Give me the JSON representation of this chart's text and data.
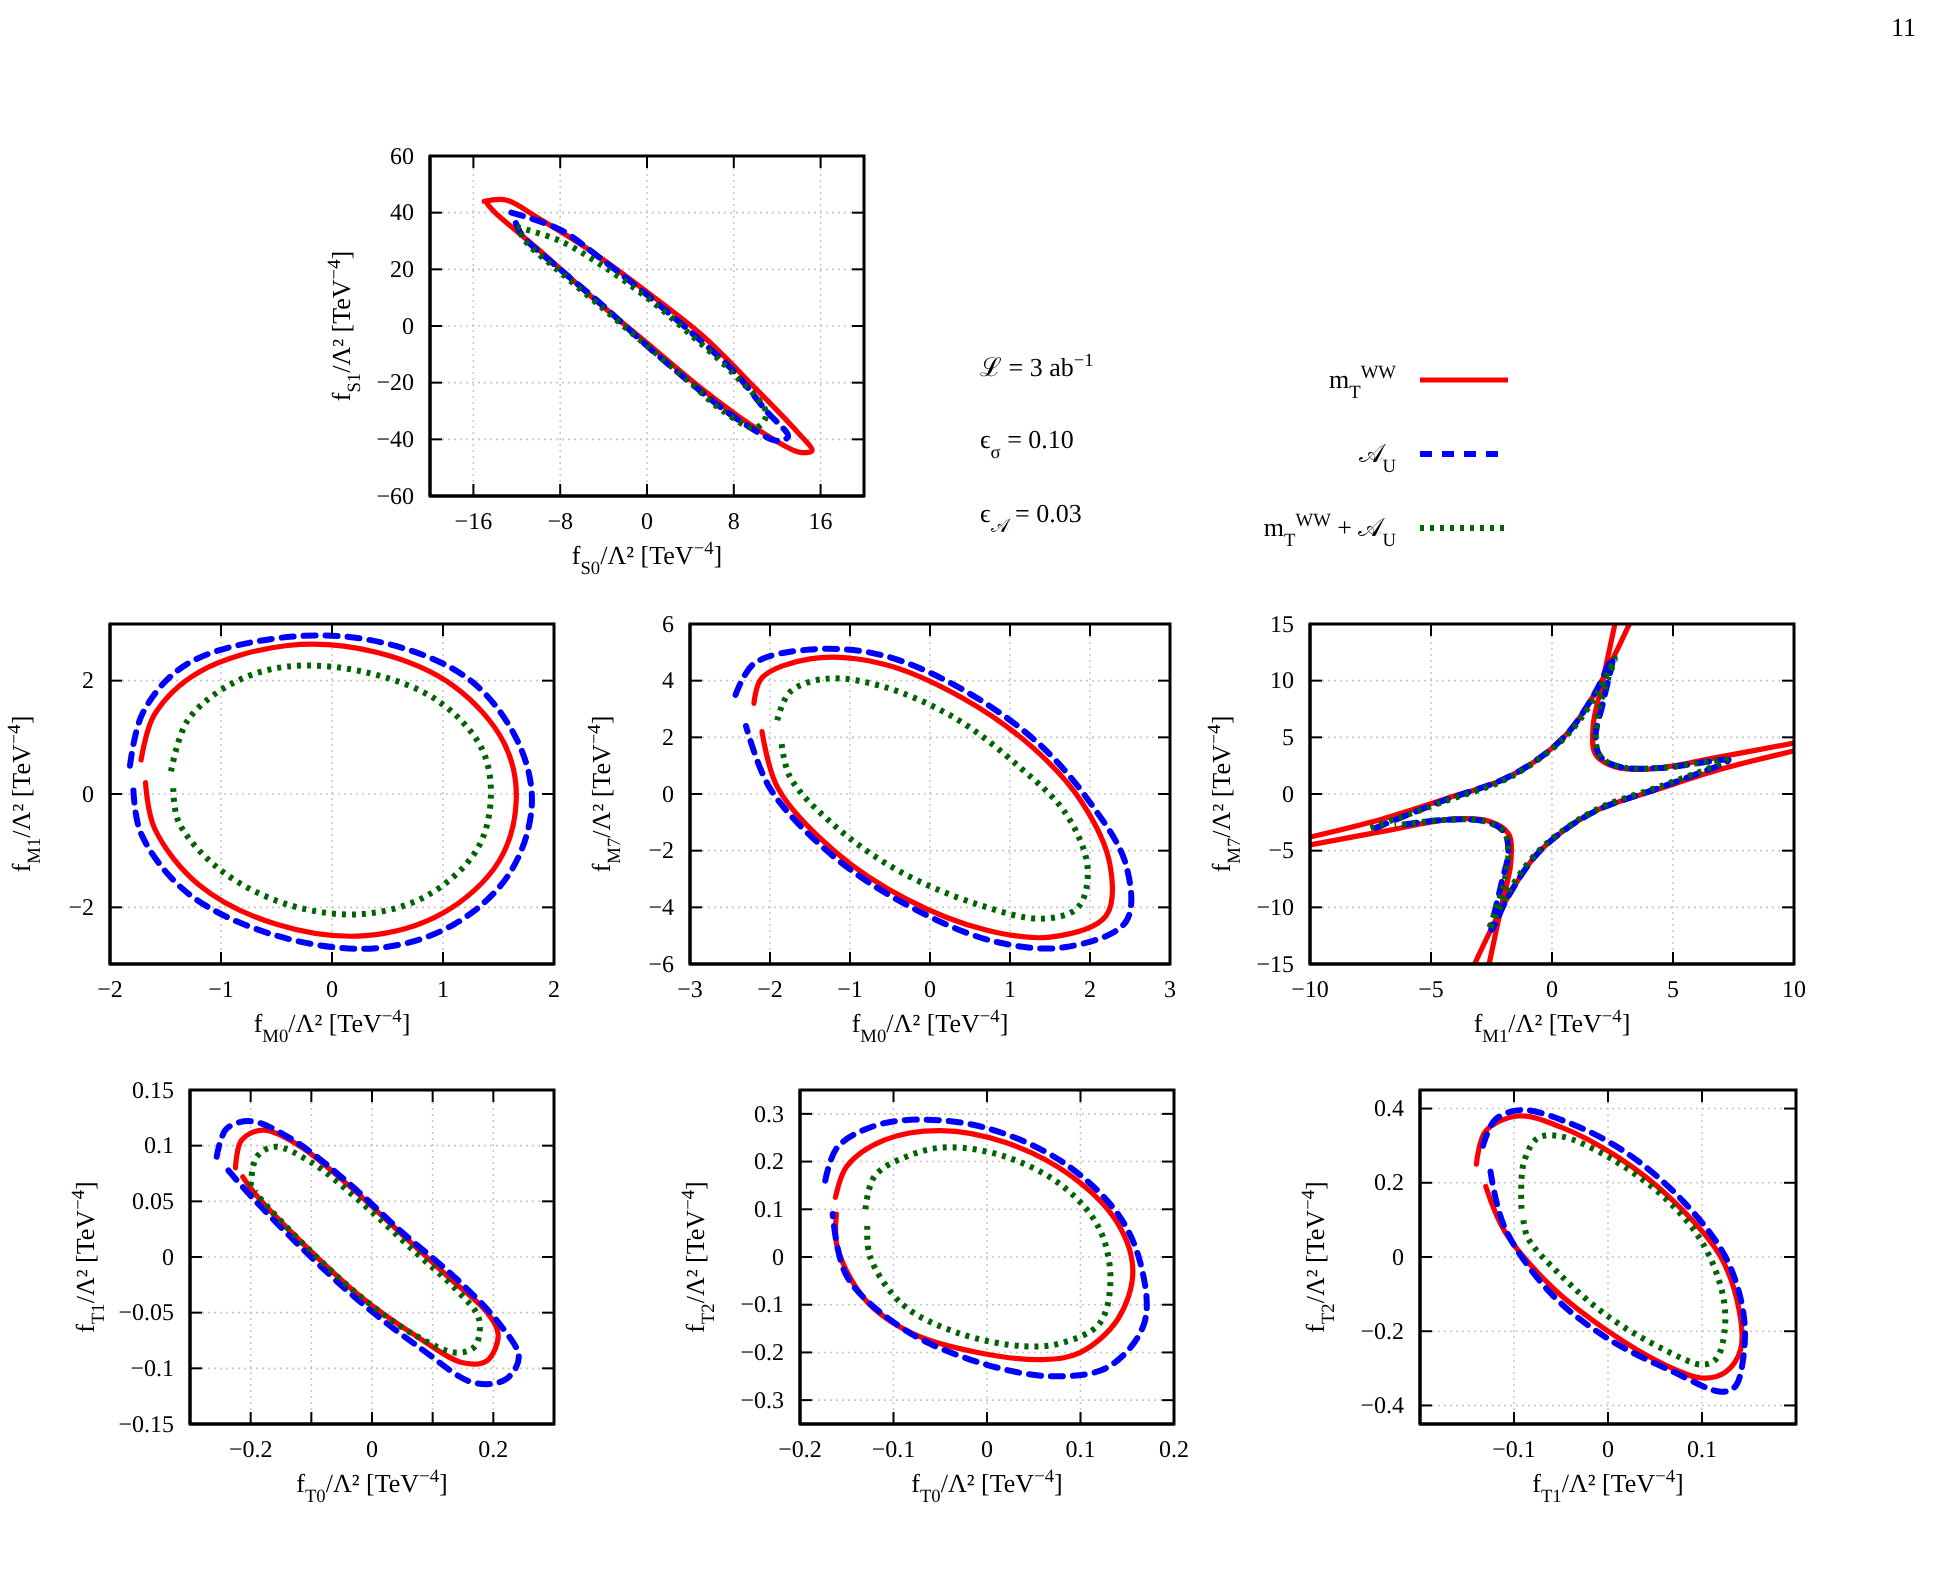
{
  "chart_data": [
    {
      "type": "line",
      "xlabel": "f$_{S0}$/Λ² [TeV$^{−4}$]",
      "ylabel": "f$_{S1}$/Λ² [TeV$^{−4}$]",
      "xlim": [
        -20,
        20
      ],
      "xticks": [
        -16,
        -8,
        0,
        8,
        16
      ],
      "ylim": [
        -60,
        60
      ],
      "yticks": [
        -60,
        -40,
        -20,
        0,
        20,
        40,
        60
      ],
      "grid": true,
      "legend": "right",
      "annotations": [
        "ℒ = 3 ab$^{−1}$",
        "ϵ$_{σ}$ = 0.10",
        "ϵ$_{𝒜}$ = 0.03",
        "11"
      ],
      "series": [
        {
          "name": "m$_{T}$$^{WW}$",
          "color": "#ff0000",
          "line_style": "solid",
          "x": [
            -15,
            -13,
            -10,
            -5,
            0,
            5,
            10,
            14,
            15.2,
            14,
            10,
            5,
            0,
            -5,
            -10,
            -14,
            -14.7
          ],
          "values": [
            44,
            44.5,
            38,
            26,
            12,
            -3,
            -22,
            -38,
            -44,
            -44.5,
            -36,
            -22,
            -6,
            10,
            27,
            40,
            43
          ]
        },
        {
          "name": "𝒜$_{U}$",
          "color": "#0000ff",
          "line_style": "dashed",
          "x": [
            -12.5,
            -8,
            -4,
            0,
            4,
            8,
            11,
            13,
            12,
            8,
            4,
            0,
            -4,
            -8,
            -11.5,
            -12.2
          ],
          "values": [
            40,
            34,
            23,
            11,
            -2,
            -16,
            -30,
            -39,
            -40.5,
            -32,
            -20,
            -7,
            7,
            20,
            32,
            37.5
          ]
        },
        {
          "name": "m$_{T}$$^{WW}$ + 𝒜$_{U}$",
          "color": "#006400",
          "line_style": "dotted",
          "x": [
            -12,
            -8,
            -4,
            0,
            4,
            8,
            11,
            10,
            7,
            4,
            0,
            -4,
            -8,
            -11,
            -11.7
          ],
          "values": [
            35,
            30,
            21,
            10,
            -3,
            -17,
            -31,
            -36,
            -30,
            -20,
            -7,
            6,
            19,
            29,
            33
          ]
        }
      ]
    },
    {
      "type": "line",
      "xlabel": "f$_{M0}$/Λ² [TeV$^{−4}$]",
      "ylabel": "f$_{M1}$/Λ² [TeV$^{−4}$]",
      "xlim": [
        -2,
        2
      ],
      "xticks": [
        -2,
        -1,
        0,
        1,
        2
      ],
      "ylim": [
        -3,
        3
      ],
      "yticks": [
        -2,
        0,
        2
      ],
      "grid": true,
      "series": [
        {
          "color": "#ff0000",
          "line_style": "solid",
          "x": [
            -1.72,
            -1.6,
            -1.2,
            -0.4,
            0.4,
            1.1,
            1.55,
            1.66,
            1.5,
            1.0,
            0.3,
            -0.5,
            -1.2,
            -1.6,
            -1.68
          ],
          "values": [
            0.6,
            1.4,
            2.15,
            2.62,
            2.5,
            1.9,
            0.9,
            -0.1,
            -1.2,
            -2.1,
            -2.5,
            -2.3,
            -1.6,
            -0.6,
            0.2
          ]
        },
        {
          "color": "#0000ff",
          "line_style": "dashed",
          "x": [
            -1.82,
            -1.7,
            -1.3,
            -0.35,
            0.5,
            1.25,
            1.68,
            1.8,
            1.6,
            1.1,
            0.4,
            -0.5,
            -1.3,
            -1.72,
            -1.79
          ],
          "values": [
            0.5,
            1.45,
            2.3,
            2.78,
            2.65,
            2.0,
            0.9,
            -0.2,
            -1.4,
            -2.3,
            -2.72,
            -2.5,
            -1.75,
            -0.7,
            0.1
          ]
        },
        {
          "color": "#006400",
          "line_style": "dotted",
          "x": [
            -1.45,
            -1.3,
            -0.9,
            -0.4,
            0.3,
            0.95,
            1.35,
            1.43,
            1.3,
            0.85,
            0.26,
            -0.4,
            -1.0,
            -1.38,
            -1.43
          ],
          "values": [
            0.4,
            1.3,
            1.95,
            2.25,
            2.15,
            1.65,
            0.8,
            -0.1,
            -1.0,
            -1.8,
            -2.12,
            -1.95,
            -1.35,
            -0.5,
            0.1
          ]
        }
      ]
    },
    {
      "type": "line",
      "xlabel": "f$_{M0}$/Λ² [TeV$^{−4}$]",
      "ylabel": "f$_{M7}$/Λ² [TeV$^{−4}$]",
      "xlim": [
        -3,
        3
      ],
      "xticks": [
        -3,
        -2,
        -1,
        0,
        1,
        2,
        3
      ],
      "ylim": [
        -6,
        6
      ],
      "yticks": [
        -6,
        -4,
        -2,
        0,
        2,
        4,
        6
      ],
      "grid": true,
      "series": [
        {
          "color": "#ff0000",
          "line_style": "solid",
          "x": [
            -2.2,
            -2.1,
            -1.5,
            -0.6,
            0.4,
            1.3,
            1.9,
            2.25,
            2.2,
            1.5,
            0.7,
            -0.3,
            -1.2,
            -1.9,
            -2.1
          ],
          "values": [
            3.2,
            4.1,
            4.77,
            4.6,
            3.4,
            1.6,
            -0.3,
            -2.5,
            -4.3,
            -5.05,
            -4.8,
            -3.7,
            -2.0,
            0.2,
            2.2
          ]
        },
        {
          "color": "#0000ff",
          "line_style": "dashed",
          "x": [
            -2.43,
            -2.2,
            -1.5,
            -0.6,
            0.4,
            1.35,
            2.0,
            2.45,
            2.45,
            1.7,
            0.8,
            -0.3,
            -1.25,
            -2.0,
            -2.3
          ],
          "values": [
            3.5,
            4.6,
            5.1,
            4.9,
            3.7,
            1.8,
            -0.3,
            -2.5,
            -4.5,
            -5.4,
            -5.2,
            -3.9,
            -2.1,
            0.2,
            2.4
          ]
        },
        {
          "color": "#006400",
          "line_style": "dotted",
          "x": [
            -1.91,
            -1.75,
            -1.3,
            -0.6,
            0.3,
            1.1,
            1.7,
            1.97,
            1.85,
            1.4,
            0.6,
            -0.4,
            -1.2,
            -1.75,
            -1.86
          ],
          "values": [
            2.6,
            3.6,
            4.07,
            3.8,
            2.7,
            1.0,
            -0.7,
            -2.6,
            -4.0,
            -4.4,
            -3.9,
            -2.7,
            -1.1,
            0.6,
            1.9
          ]
        }
      ]
    },
    {
      "type": "line",
      "xlabel": "f$_{M1}$/Λ² [TeV$^{−4}$]",
      "ylabel": "f$_{M7}$/Λ² [TeV$^{−4}$]",
      "xlim": [
        -10,
        10
      ],
      "xticks": [
        -10,
        -5,
        0,
        5,
        10
      ],
      "ylim": [
        -15,
        15
      ],
      "yticks": [
        -15,
        -10,
        -5,
        0,
        5,
        10,
        15
      ],
      "grid": true,
      "series": [
        {
          "color": "#ff0000",
          "line_style": "solid",
          "x": [
            -10,
            -7,
            -4.5,
            -2,
            -0.5,
            0.7,
            1.8,
            3.2,
            null,
            2.6,
            2.1,
            1.7,
            1.8,
            2.6,
            4,
            7,
            10,
            null,
            10,
            7,
            4.5,
            2,
            0.5,
            -0.7,
            -1.8,
            -3.2,
            null,
            -2.6,
            -2.1,
            -1.7,
            -1.8,
            -2.6,
            -4,
            -7,
            -10
          ],
          "values": [
            -3.8,
            -2.2,
            -0.5,
            1.3,
            3.2,
            5.5,
            9,
            15,
            null,
            15,
            10,
            6,
            3.5,
            2.4,
            2.2,
            3.3,
            4.5,
            null,
            3.8,
            2.2,
            0.5,
            -1.3,
            -3.2,
            -5.5,
            -9,
            -15,
            null,
            -15,
            -10,
            -6,
            -3.5,
            -2.4,
            -2.2,
            -3.3,
            -4.5
          ]
        },
        {
          "color": "#0000ff",
          "line_style": "dashed",
          "x": [
            -7.3,
            -4.5,
            -2,
            -0.5,
            0.7,
            1.8,
            2.5,
            2.1,
            1.8,
            2.0,
            2.8,
            4.5,
            7.3,
            4.5,
            2,
            0.5,
            -0.7,
            -1.8,
            -2.5,
            -2.1,
            -1.8,
            -2.0,
            -2.8,
            -4.5,
            -6.4
          ],
          "values": [
            -3.0,
            -0.6,
            1.3,
            3.2,
            5.5,
            9,
            12,
            8,
            5,
            3.3,
            2.4,
            2.3,
            3.0,
            0.6,
            -1.3,
            -3.2,
            -5.5,
            -9,
            -12,
            -8,
            -5,
            -3.3,
            -2.4,
            -2.3,
            -2.8
          ]
        },
        {
          "color": "#006400",
          "line_style": "dotted",
          "x": [
            -7.5,
            -4.5,
            -2,
            -0.4,
            0.8,
            1.9,
            2.6,
            2.0,
            1.8,
            2.0,
            2.8,
            4.5,
            7.2,
            4.5,
            2,
            0.4,
            -0.8,
            -1.9,
            -2.6,
            -2.0,
            -1.8,
            -2.0,
            -2.8,
            -4.5,
            -6.5
          ],
          "values": [
            -3.0,
            -0.7,
            1.2,
            3.3,
            5.6,
            9,
            12,
            8,
            5,
            3.3,
            2.4,
            2.3,
            3.0,
            0.7,
            -1.2,
            -3.3,
            -5.6,
            -9,
            -12,
            -8,
            -5,
            -3.3,
            -2.4,
            -2.3,
            -2.8
          ]
        }
      ]
    },
    {
      "type": "line",
      "xlabel": "f$_{T0}$/Λ² [TeV$^{−4}$]",
      "ylabel": "f$_{T1}$/Λ² [TeV$^{−4}$]",
      "xlim": [
        -0.3,
        0.3
      ],
      "xticks": [
        {
          "value": -0.3,
          "label": null
        },
        -0.2,
        {
          "value": -0.1,
          "label": null
        },
        0,
        {
          "value": 0.1,
          "label": null
        },
        0.2,
        {
          "value": 0.3,
          "label": null
        }
      ],
      "ylim": [
        -0.15,
        0.15
      ],
      "yticks": [
        -0.15,
        -0.1,
        -0.05,
        0,
        0.05,
        0.1,
        0.15
      ],
      "grid": true,
      "series": [
        {
          "color": "#ff0000",
          "line_style": "solid",
          "x": [
            -0.225,
            -0.215,
            -0.18,
            -0.12,
            -0.04,
            0.05,
            0.13,
            0.19,
            0.208,
            0.19,
            0.15,
            0.07,
            -0.02,
            -0.11,
            -0.19,
            -0.213
          ],
          "values": [
            0.08,
            0.105,
            0.114,
            0.1,
            0.065,
            0.02,
            -0.02,
            -0.05,
            -0.07,
            -0.093,
            -0.095,
            -0.07,
            -0.035,
            0.01,
            0.055,
            0.072
          ]
        },
        {
          "color": "#0000ff",
          "line_style": "dashed",
          "x": [
            -0.256,
            -0.24,
            -0.2,
            -0.13,
            -0.04,
            0.05,
            0.14,
            0.21,
            0.242,
            0.22,
            0.168,
            0.08,
            -0.02,
            -0.11,
            -0.2,
            -0.237
          ],
          "values": [
            0.09,
            0.115,
            0.122,
            0.105,
            0.067,
            0.022,
            -0.02,
            -0.06,
            -0.09,
            -0.11,
            -0.113,
            -0.082,
            -0.04,
            0.005,
            0.055,
            0.078
          ]
        },
        {
          "color": "#006400",
          "line_style": "dotted",
          "x": [
            -0.2,
            -0.19,
            -0.16,
            -0.1,
            -0.02,
            0.07,
            0.14,
            0.176,
            0.17,
            0.14,
            0.07,
            -0.02,
            -0.11,
            -0.18,
            -0.193
          ],
          "values": [
            0.064,
            0.09,
            0.099,
            0.085,
            0.05,
            0.005,
            -0.03,
            -0.055,
            -0.08,
            -0.086,
            -0.07,
            -0.035,
            0.01,
            0.05,
            0.059
          ]
        }
      ]
    },
    {
      "type": "line",
      "xlabel": "f$_{T0}$/Λ² [TeV$^{−4}$]",
      "ylabel": "f$_{T2}$/Λ² [TeV$^{−4}$]",
      "xlim": [
        -0.2,
        0.2
      ],
      "xticks": [
        -0.2,
        -0.1,
        0,
        0.1,
        0.2
      ],
      "ylim": [
        -0.35,
        0.35
      ],
      "yticks": [
        -0.3,
        -0.2,
        -0.1,
        0,
        0.1,
        0.2,
        0.3
      ],
      "grid": true,
      "series": [
        {
          "color": "#ff0000",
          "line_style": "solid",
          "x": [
            -0.162,
            -0.15,
            -0.11,
            -0.05,
            0.02,
            0.09,
            0.14,
            0.156,
            0.14,
            0.1,
            0.06,
            -0.01,
            -0.08,
            -0.13,
            -0.16,
            -0.161
          ],
          "values": [
            0.125,
            0.19,
            0.245,
            0.265,
            0.24,
            0.17,
            0.07,
            -0.03,
            -0.13,
            -0.2,
            -0.215,
            -0.2,
            -0.16,
            -0.09,
            0.02,
            0.09
          ]
        },
        {
          "color": "#0000ff",
          "line_style": "dashed",
          "x": [
            -0.173,
            -0.16,
            -0.12,
            -0.07,
            0.0,
            0.08,
            0.14,
            0.165,
            0.168,
            0.13,
            0.07,
            -0.01,
            -0.09,
            -0.15,
            -0.165
          ],
          "values": [
            0.16,
            0.23,
            0.275,
            0.288,
            0.27,
            0.2,
            0.09,
            -0.02,
            -0.14,
            -0.23,
            -0.25,
            -0.22,
            -0.15,
            -0.04,
            0.09
          ]
        },
        {
          "color": "#006400",
          "line_style": "dotted",
          "x": [
            -0.13,
            -0.12,
            -0.08,
            -0.04,
            0.02,
            0.08,
            0.12,
            0.132,
            0.12,
            0.08,
            0.04,
            -0.03,
            -0.09,
            -0.125,
            -0.128
          ],
          "values": [
            0.1,
            0.17,
            0.215,
            0.23,
            0.21,
            0.15,
            0.06,
            -0.05,
            -0.14,
            -0.18,
            -0.187,
            -0.16,
            -0.1,
            0.0,
            0.065
          ]
        }
      ]
    },
    {
      "type": "line",
      "xlabel": "f$_{T1}$/Λ² [TeV$^{−4}$]",
      "ylabel": "f$_{T2}$/Λ² [TeV$^{−4}$]",
      "xlim": [
        -0.2,
        0.2
      ],
      "xticks": [
        -0.1,
        0,
        0.1
      ],
      "ylim": [
        -0.45,
        0.45
      ],
      "yticks": [
        -0.4,
        -0.2,
        0,
        0.2,
        0.4
      ],
      "grid": true,
      "series": [
        {
          "color": "#ff0000",
          "line_style": "solid",
          "x": [
            -0.14,
            -0.13,
            -0.096,
            -0.05,
            0.01,
            0.07,
            0.12,
            0.14,
            0.141,
            0.125,
            0.1,
            0.06,
            0.0,
            -0.06,
            -0.11,
            -0.13
          ],
          "values": [
            0.25,
            0.34,
            0.38,
            0.35,
            0.27,
            0.15,
            0.0,
            -0.15,
            -0.25,
            -0.31,
            -0.326,
            -0.29,
            -0.2,
            -0.08,
            0.07,
            0.19
          ]
        },
        {
          "color": "#0000ff",
          "line_style": "dashed",
          "x": [
            -0.133,
            -0.12,
            -0.092,
            -0.04,
            0.02,
            0.08,
            0.125,
            0.144,
            0.144,
            0.135,
            0.12,
            0.07,
            0.0,
            -0.06,
            -0.11,
            -0.125
          ],
          "values": [
            0.3,
            0.37,
            0.396,
            0.36,
            0.28,
            0.15,
            0.0,
            -0.15,
            -0.27,
            -0.35,
            -0.363,
            -0.31,
            -0.22,
            -0.1,
            0.08,
            0.23
          ]
        },
        {
          "color": "#006400",
          "line_style": "dotted",
          "x": [
            -0.092,
            -0.09,
            -0.075,
            -0.05,
            0.0,
            0.06,
            0.1,
            0.122,
            0.124,
            0.115,
            0.1,
            0.06,
            0.0,
            -0.05,
            -0.085,
            -0.09
          ],
          "values": [
            0.13,
            0.25,
            0.32,
            0.325,
            0.27,
            0.16,
            0.04,
            -0.1,
            -0.2,
            -0.275,
            -0.29,
            -0.25,
            -0.16,
            -0.05,
            0.05,
            0.1
          ]
        }
      ]
    }
  ]
}
